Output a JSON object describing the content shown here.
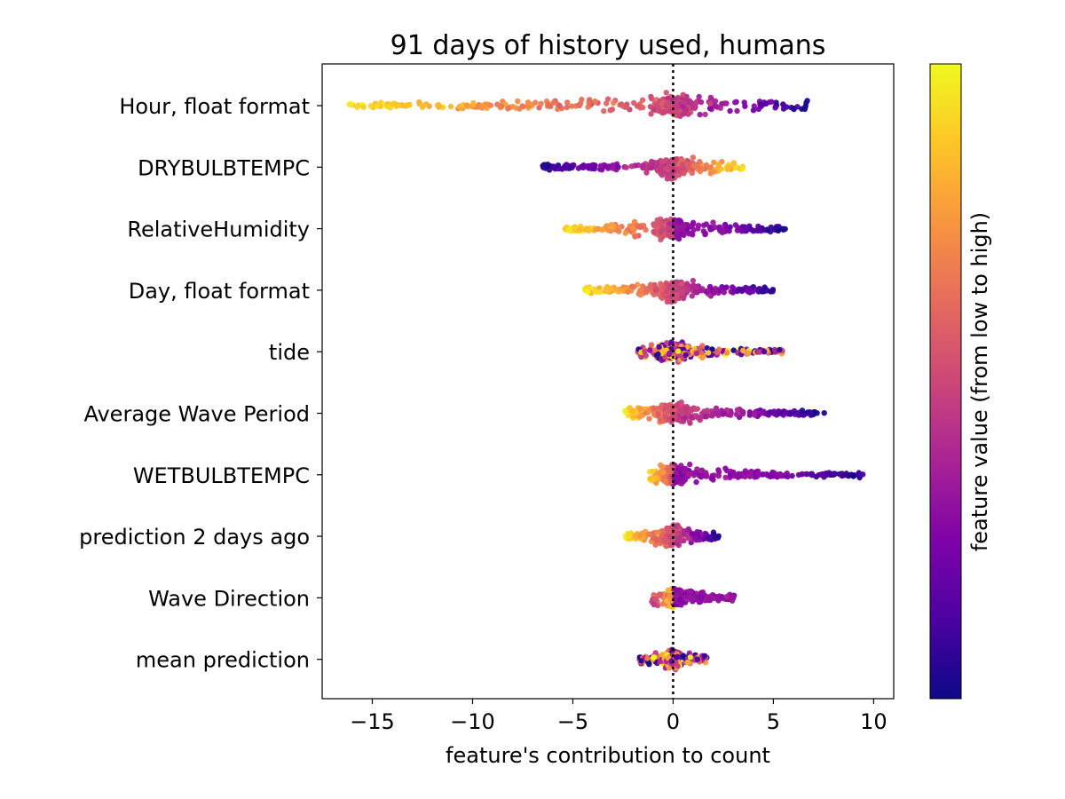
{
  "chart_data": {
    "type": "scatter",
    "subtype": "beeswarm",
    "title": "91 days of history used, humans",
    "xlabel": "feature's contribution to count",
    "ylabel": "",
    "xlim": [
      -17.5,
      11.0
    ],
    "xticks": [
      -15,
      -10,
      -5,
      0,
      5,
      10
    ],
    "xtick_labels": [
      "−15",
      "−10",
      "−5",
      "0",
      "5",
      "10"
    ],
    "reference_line": {
      "x": 0,
      "style": "dotted"
    },
    "grid": false,
    "colormap": "plasma",
    "colorbar_label": "feature value (from low to high)",
    "features": [
      {
        "name": "Hour, float format",
        "min": -16.3,
        "max": 6.7,
        "low_value_side": "center",
        "high_value_side": "left"
      },
      {
        "name": "DRYBULBTEMPC",
        "min": -6.5,
        "max": 3.6,
        "low_value_side": "center",
        "high_value_side": "right"
      },
      {
        "name": "RelativeHumidity",
        "min": -5.5,
        "max": 5.6,
        "low_value_side": "right",
        "high_value_side": "left"
      },
      {
        "name": "Day, float format",
        "min": -4.4,
        "max": 5.1,
        "low_value_side": "center",
        "high_value_side": "left"
      },
      {
        "name": "tide",
        "min": -1.8,
        "max": 5.6,
        "low_value_side": "mixed",
        "high_value_side": "mixed"
      },
      {
        "name": "Average Wave Period",
        "min": -2.4,
        "max": 7.6,
        "low_value_side": "center",
        "high_value_side": "left"
      },
      {
        "name": "WETBULBTEMPC",
        "min": -1.2,
        "max": 9.7,
        "low_value_side": "right",
        "high_value_side": "left"
      },
      {
        "name": "prediction 2 days ago",
        "min": -2.4,
        "max": 2.3,
        "low_value_side": "mixed",
        "high_value_side": "left"
      },
      {
        "name": "Wave Direction",
        "min": -1.1,
        "max": 3.1,
        "low_value_side": "right",
        "high_value_side": "center"
      },
      {
        "name": "mean prediction",
        "min": -1.7,
        "max": 1.7,
        "low_value_side": "mixed",
        "high_value_side": "mixed"
      }
    ]
  }
}
